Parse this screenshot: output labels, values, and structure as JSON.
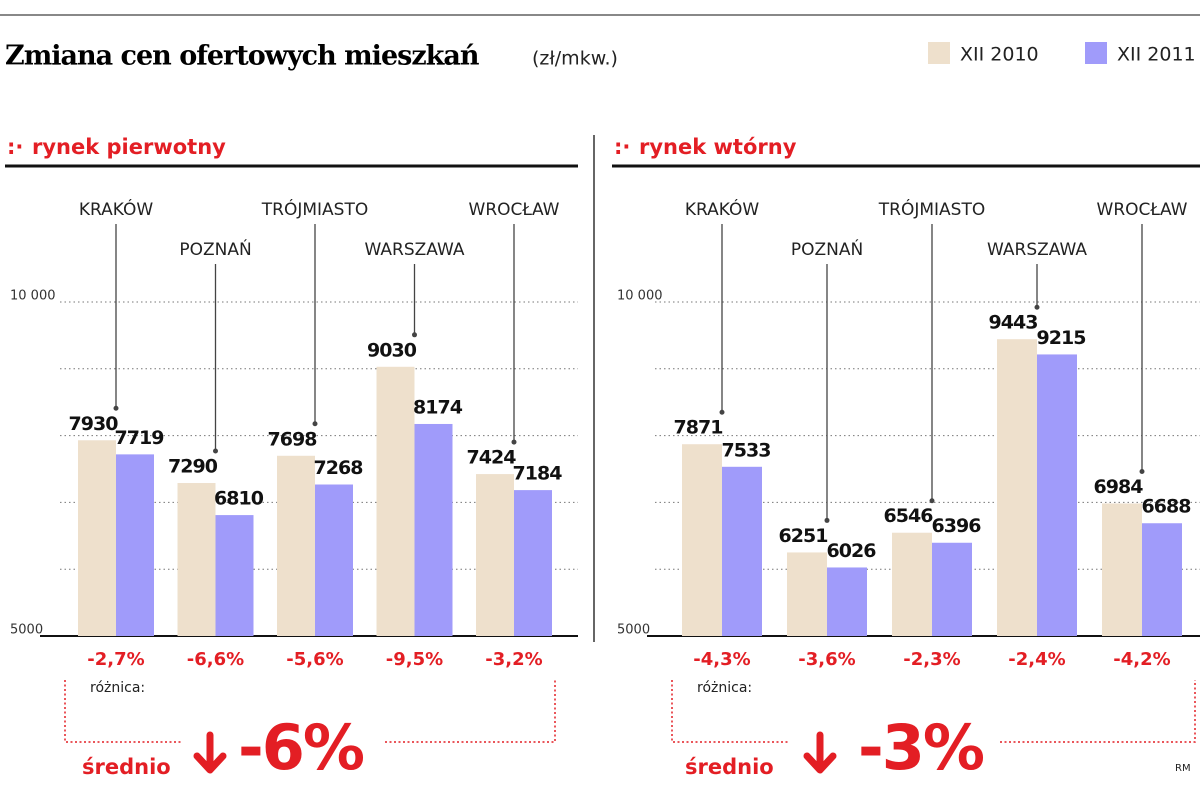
{
  "header": {
    "title": "Zmiana cen ofertowych mieszkań",
    "unit": "(zł/mkw.)"
  },
  "credit": "RM",
  "chart_data": [
    {
      "type": "bar",
      "title": "rynek pierwotny",
      "categories": [
        "KRAKÓW",
        "POZNAŃ",
        "TRÓJMIASTO",
        "WARSZAWA",
        "WROCŁAW"
      ],
      "series": [
        {
          "name": "XII 2010",
          "color": "#eee0cc",
          "values": [
            7930,
            7290,
            7698,
            9030,
            7424
          ]
        },
        {
          "name": "XII 2011",
          "color": "#a09bfa",
          "values": [
            7719,
            6810,
            7268,
            8174,
            7184
          ]
        }
      ],
      "ylim": [
        5000,
        10000
      ],
      "yticks": [
        5000,
        {
          "value": 10000,
          "label": "10 000"
        }
      ],
      "ygrid": [
        6000,
        7000,
        8000,
        9000
      ],
      "changes": [
        "-2,7%",
        "-6,6%",
        "-5,6%",
        "-9,5%",
        "-3,2%"
      ],
      "difference_label": "różnica:",
      "average_label": "średnio",
      "average": "-6%"
    },
    {
      "type": "bar",
      "title": "rynek wtórny",
      "categories": [
        "KRAKÓW",
        "POZNAŃ",
        "TRÓJMIASTO",
        "WARSZAWA",
        "WROCŁAW"
      ],
      "series": [
        {
          "color": "#eee0cc",
          "values": [
            7871,
            6251,
            6546,
            9443,
            6984
          ]
        },
        {
          "color": "#a09bfa",
          "values": [
            7533,
            6026,
            6396,
            9215,
            6688
          ]
        }
      ],
      "ylim": [
        5000,
        10000
      ],
      "yticks": [
        5000,
        {
          "value": 10000,
          "label": "10 000"
        }
      ],
      "ygrid": [
        6000,
        7000,
        8000,
        9000
      ],
      "changes": [
        "-4,3%",
        "-3,6%",
        "-2,3%",
        "-2,4%",
        "-4,2%"
      ],
      "difference_label": "różnica:",
      "average_label": "średnio",
      "average": "-3%"
    }
  ]
}
